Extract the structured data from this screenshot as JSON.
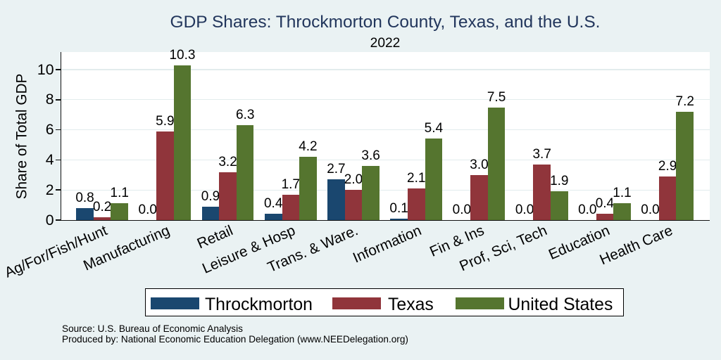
{
  "title": "GDP Shares: Throckmorton County, Texas, and the U.S.",
  "subtitle": "2022",
  "notes": {
    "source": "Source: U.S. Bureau of Economic Analysis",
    "produced_by": "Produced by: National Economic Education Delegation (www.NEEDelegation.org)"
  },
  "colors": {
    "background": "#eaf2f3",
    "plot_background": "#ffffff",
    "gridline": "#e2eced",
    "axis": "#121212",
    "title": "#22365c",
    "throckmorton": "#1a476f",
    "texas": "#90353b",
    "united_states": "#55752f"
  },
  "chart_data": {
    "type": "bar",
    "title": "GDP Shares: Throckmorton County, Texas, and the U.S.",
    "subtitle": "2022",
    "xlabel": "",
    "ylabel": "Share of Total GDP",
    "ylim": [
      0,
      11.2
    ],
    "yticks": [
      0,
      2,
      4,
      6,
      8,
      10
    ],
    "grid": true,
    "legend_position": "bottom",
    "bar_value_labels": true,
    "categories": [
      "Ag/For/Fish/Hunt",
      "Manufacturing",
      "Retail",
      "Leisure & Hosp",
      "Trans. & Ware.",
      "Information",
      "Fin & Ins",
      "Prof, Sci, Tech",
      "Education",
      "Health Care"
    ],
    "series": [
      {
        "name": "Throckmorton",
        "color": "#1a476f",
        "values": [
          0.8,
          0.0,
          0.9,
          0.4,
          2.7,
          0.1,
          0.0,
          0.0,
          0.0,
          0.0
        ]
      },
      {
        "name": "Texas",
        "color": "#90353b",
        "values": [
          0.2,
          5.9,
          3.2,
          1.7,
          2.0,
          2.1,
          3.0,
          3.7,
          0.4,
          2.9
        ]
      },
      {
        "name": "United States",
        "color": "#55752f",
        "values": [
          1.1,
          10.3,
          6.3,
          4.2,
          3.6,
          5.4,
          7.5,
          1.9,
          1.1,
          7.2
        ]
      }
    ]
  }
}
